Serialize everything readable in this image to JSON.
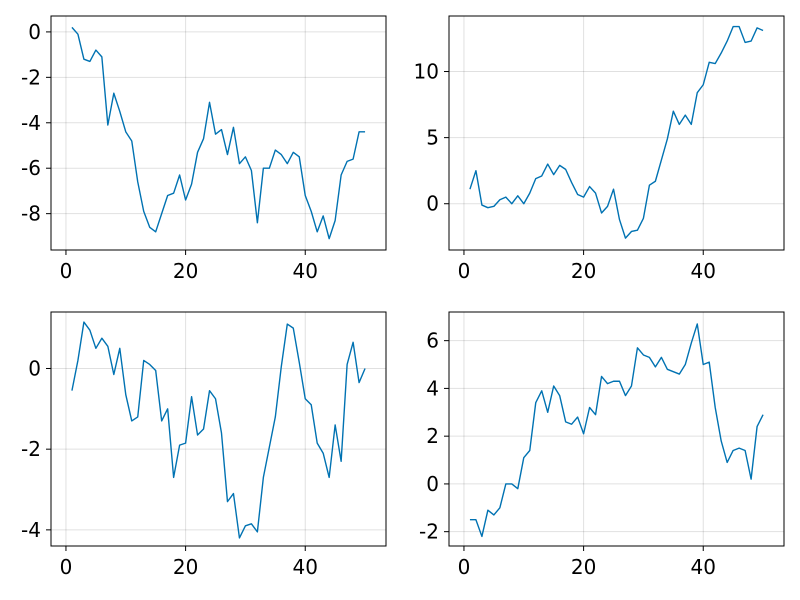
{
  "chart_data": [
    {
      "type": "line",
      "title": "",
      "xlabel": "",
      "ylabel": "",
      "xlim": [
        -2.5,
        53.5
      ],
      "ylim": [
        -9.6,
        0.7
      ],
      "xticks": [
        0,
        20,
        40
      ],
      "yticks": [
        0,
        -2,
        -4,
        -6,
        -8
      ],
      "ytick_labels": [
        "0",
        "-2",
        "-4",
        "-6",
        "-8"
      ],
      "grid": true,
      "series": [
        {
          "color": "#0072b2",
          "x": [
            1,
            2,
            3,
            4,
            5,
            6,
            7,
            8,
            9,
            10,
            11,
            12,
            13,
            14,
            15,
            16,
            17,
            18,
            19,
            20,
            21,
            22,
            23,
            24,
            25,
            26,
            27,
            28,
            29,
            30,
            31,
            32,
            33,
            34,
            35,
            36,
            37,
            38,
            39,
            40,
            41,
            42,
            43,
            44,
            45,
            46,
            47,
            48,
            49,
            50
          ],
          "y": [
            0.2,
            -0.1,
            -1.2,
            -1.3,
            -0.8,
            -1.1,
            -4.1,
            -2.7,
            -3.5,
            -4.4,
            -4.8,
            -6.6,
            -7.9,
            -8.6,
            -8.8,
            -8.0,
            -7.2,
            -7.1,
            -6.3,
            -7.4,
            -6.7,
            -5.3,
            -4.7,
            -3.1,
            -4.5,
            -4.3,
            -5.4,
            -4.2,
            -5.8,
            -5.5,
            -6.1,
            -8.4,
            -6.0,
            -6.0,
            -5.2,
            -5.4,
            -5.8,
            -5.3,
            -5.5,
            -7.2,
            -7.9,
            -8.8,
            -8.1,
            -9.1,
            -8.3,
            -6.3,
            -5.7,
            -5.6,
            -4.4,
            -4.4
          ]
        }
      ]
    },
    {
      "type": "line",
      "title": "",
      "xlabel": "",
      "ylabel": "",
      "xlim": [
        -2.5,
        53.5
      ],
      "ylim": [
        -3.5,
        14.2
      ],
      "xticks": [
        0,
        20,
        40
      ],
      "yticks": [
        0,
        5,
        10
      ],
      "ytick_labels": [
        "0",
        "5",
        "10"
      ],
      "grid": true,
      "series": [
        {
          "color": "#0072b2",
          "x": [
            1,
            2,
            3,
            4,
            5,
            6,
            7,
            8,
            9,
            10,
            11,
            12,
            13,
            14,
            15,
            16,
            17,
            18,
            19,
            20,
            21,
            22,
            23,
            24,
            25,
            26,
            27,
            28,
            29,
            30,
            31,
            32,
            33,
            34,
            35,
            36,
            37,
            38,
            39,
            40,
            41,
            42,
            43,
            44,
            45,
            46,
            47,
            48,
            49,
            50
          ],
          "y": [
            1.1,
            2.5,
            -0.1,
            -0.3,
            -0.2,
            0.3,
            0.5,
            0.0,
            0.6,
            0.0,
            0.8,
            1.9,
            2.1,
            3.0,
            2.2,
            2.9,
            2.6,
            1.6,
            0.7,
            0.5,
            1.3,
            0.8,
            -0.7,
            -0.2,
            1.1,
            -1.2,
            -2.6,
            -2.1,
            -2.0,
            -1.1,
            1.4,
            1.7,
            3.3,
            4.9,
            7.0,
            6.0,
            6.7,
            6.0,
            8.4,
            9.0,
            10.7,
            10.6,
            11.4,
            12.3,
            13.4,
            13.4,
            12.2,
            12.3,
            13.3,
            13.1
          ]
        }
      ]
    },
    {
      "type": "line",
      "title": "",
      "xlabel": "",
      "ylabel": "",
      "xlim": [
        -2.5,
        53.5
      ],
      "ylim": [
        -4.4,
        1.4
      ],
      "xticks": [
        0,
        20,
        40
      ],
      "yticks": [
        0,
        -2,
        -4
      ],
      "ytick_labels": [
        "0",
        "-2",
        "-4"
      ],
      "grid": true,
      "series": [
        {
          "color": "#0072b2",
          "x": [
            1,
            2,
            3,
            4,
            5,
            6,
            7,
            8,
            9,
            10,
            11,
            12,
            13,
            14,
            15,
            16,
            17,
            18,
            19,
            20,
            21,
            22,
            23,
            24,
            25,
            26,
            27,
            28,
            29,
            30,
            31,
            32,
            33,
            34,
            35,
            36,
            37,
            38,
            39,
            40,
            41,
            42,
            43,
            44,
            45,
            46,
            47,
            48,
            49,
            50
          ],
          "y": [
            -0.55,
            0.2,
            1.15,
            0.95,
            0.5,
            0.75,
            0.55,
            -0.15,
            0.5,
            -0.65,
            -1.3,
            -1.2,
            0.2,
            0.1,
            -0.05,
            -1.3,
            -1.0,
            -2.7,
            -1.9,
            -1.85,
            -0.7,
            -1.65,
            -1.5,
            -0.55,
            -0.75,
            -1.6,
            -3.3,
            -3.1,
            -4.2,
            -3.9,
            -3.85,
            -4.05,
            -2.7,
            -1.95,
            -1.2,
            0.05,
            1.1,
            1.0,
            0.15,
            -0.75,
            -0.9,
            -1.85,
            -2.1,
            -2.7,
            -1.4,
            -2.3,
            0.1,
            0.65,
            -0.35,
            0.0
          ]
        }
      ]
    },
    {
      "type": "line",
      "title": "",
      "xlabel": "",
      "ylabel": "",
      "xlim": [
        -2.5,
        53.5
      ],
      "ylim": [
        -2.6,
        7.2
      ],
      "xticks": [
        0,
        20,
        40
      ],
      "yticks": [
        -2,
        0,
        2,
        4,
        6
      ],
      "ytick_labels": [
        "-2",
        "0",
        "2",
        "4",
        "6"
      ],
      "grid": true,
      "series": [
        {
          "color": "#0072b2",
          "x": [
            1,
            2,
            3,
            4,
            5,
            6,
            7,
            8,
            9,
            10,
            11,
            12,
            13,
            14,
            15,
            16,
            17,
            18,
            19,
            20,
            21,
            22,
            23,
            24,
            25,
            26,
            27,
            28,
            29,
            30,
            31,
            32,
            33,
            34,
            35,
            36,
            37,
            38,
            39,
            40,
            41,
            42,
            43,
            44,
            45,
            46,
            47,
            48,
            49,
            50
          ],
          "y": [
            -1.5,
            -1.5,
            -2.2,
            -1.1,
            -1.3,
            -1.0,
            0.0,
            0.0,
            -0.2,
            1.1,
            1.4,
            3.4,
            3.9,
            3.0,
            4.1,
            3.7,
            2.6,
            2.5,
            2.8,
            2.1,
            3.2,
            2.9,
            4.5,
            4.2,
            4.3,
            4.3,
            3.7,
            4.1,
            5.7,
            5.4,
            5.3,
            4.9,
            5.3,
            4.8,
            4.7,
            4.6,
            5.0,
            5.9,
            6.7,
            5.0,
            5.1,
            3.2,
            1.8,
            0.9,
            1.4,
            1.5,
            1.4,
            0.2,
            2.4,
            2.9
          ]
        }
      ]
    }
  ]
}
